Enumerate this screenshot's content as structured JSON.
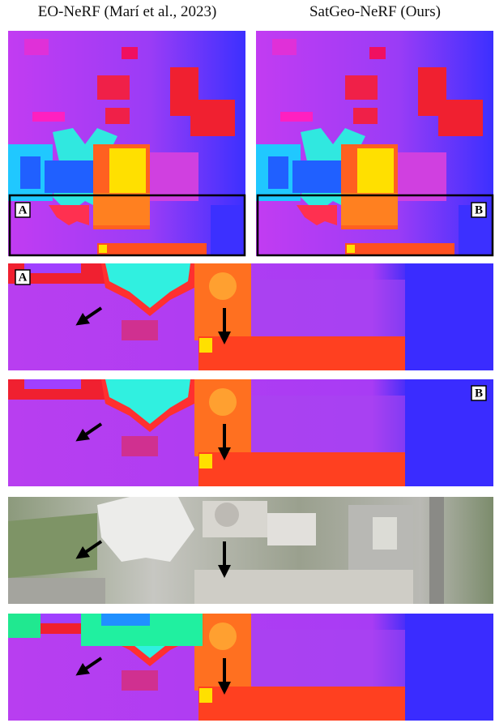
{
  "header": {
    "columns": [
      "EO-NeRF (Marí et al., 2023)",
      "SatGeo-NeRF (Ours)"
    ]
  },
  "labels": {
    "a": "A",
    "b": "B"
  }
}
